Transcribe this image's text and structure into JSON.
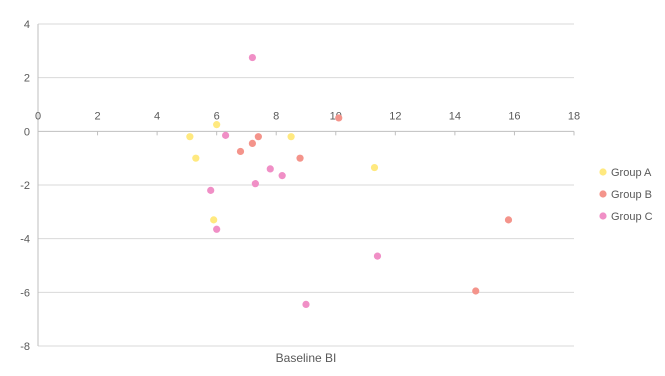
{
  "chart_data": {
    "type": "scatter",
    "title": "",
    "xlabel": "Baseline BI",
    "ylabel": "",
    "xlim": [
      0,
      18
    ],
    "ylim": [
      -8,
      4
    ],
    "x_ticks": [
      0,
      2,
      4,
      6,
      8,
      10,
      12,
      14,
      16,
      18
    ],
    "y_ticks": [
      4,
      2,
      0,
      -2,
      -4,
      -6,
      -8
    ],
    "x_tick_labels": [
      "0",
      "2",
      "4",
      "6",
      "8",
      "10",
      "12",
      "14",
      "16",
      "18"
    ],
    "y_tick_labels": [
      "4",
      "2",
      "0",
      "-2",
      "-4",
      "-6",
      "-8"
    ],
    "grid": "horizontal",
    "legend_position": "right",
    "series": [
      {
        "name": "Group A",
        "color": "#ffe97f",
        "points": [
          [
            5.1,
            -0.2
          ],
          [
            5.3,
            -1.0
          ],
          [
            6.0,
            0.25
          ],
          [
            8.5,
            -0.2
          ],
          [
            11.3,
            -1.35
          ],
          [
            5.9,
            -3.3
          ]
        ]
      },
      {
        "name": "Group B",
        "color": "#f4948b",
        "points": [
          [
            6.8,
            -0.75
          ],
          [
            7.2,
            -0.45
          ],
          [
            7.4,
            -0.2
          ],
          [
            8.8,
            -1.0
          ],
          [
            10.1,
            0.5
          ],
          [
            15.8,
            -3.3
          ],
          [
            14.7,
            -5.95
          ]
        ]
      },
      {
        "name": "Group C",
        "color": "#f08fc6",
        "points": [
          [
            7.2,
            2.75
          ],
          [
            6.3,
            -0.15
          ],
          [
            7.8,
            -1.4
          ],
          [
            8.2,
            -1.65
          ],
          [
            7.3,
            -1.95
          ],
          [
            5.8,
            -2.2
          ],
          [
            6.0,
            -3.65
          ],
          [
            11.4,
            -4.65
          ],
          [
            9.0,
            -6.45
          ]
        ]
      }
    ]
  }
}
